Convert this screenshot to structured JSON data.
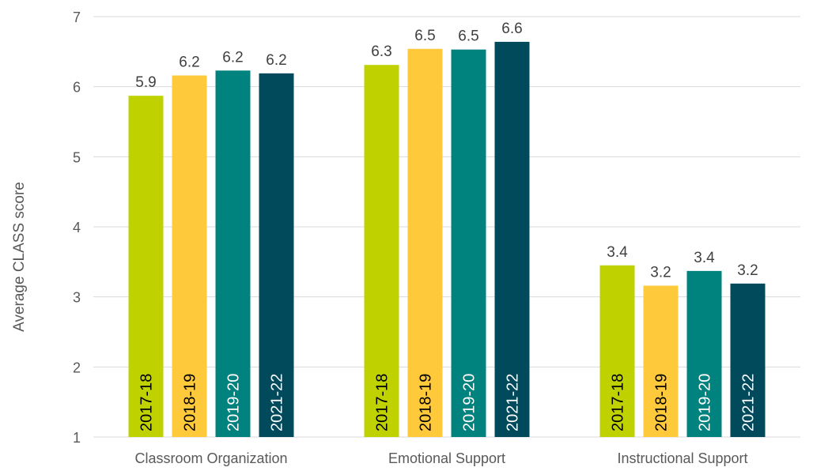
{
  "chart_data": {
    "type": "bar",
    "ylabel": "Average CLASS score",
    "ylim": [
      1,
      7
    ],
    "yticks": [
      1,
      2,
      3,
      4,
      5,
      6,
      7
    ],
    "grid": true,
    "legend": "none (series names printed vertically inside bars)",
    "categories": [
      "Classroom Organization",
      "Emotional Support",
      "Instructional Support"
    ],
    "series": [
      {
        "name": "2017-18",
        "color": "#bfd200",
        "label_color": "#000000",
        "values": [
          5.87,
          6.31,
          3.45
        ],
        "labels": [
          "5.9",
          "6.3",
          "3.4"
        ]
      },
      {
        "name": "2018-19",
        "color": "#ffc93c",
        "label_color": "#000000",
        "values": [
          6.16,
          6.54,
          3.16
        ],
        "labels": [
          "6.2",
          "6.5",
          "3.2"
        ]
      },
      {
        "name": "2019-20",
        "color": "#00827f",
        "label_color": "#ffffff",
        "values": [
          6.23,
          6.53,
          3.37
        ],
        "labels": [
          "6.2",
          "6.5",
          "3.4"
        ]
      },
      {
        "name": "2021-22",
        "color": "#004a5c",
        "label_color": "#ffffff",
        "values": [
          6.19,
          6.64,
          3.19
        ],
        "labels": [
          "6.2",
          "6.6",
          "3.2"
        ]
      }
    ]
  }
}
